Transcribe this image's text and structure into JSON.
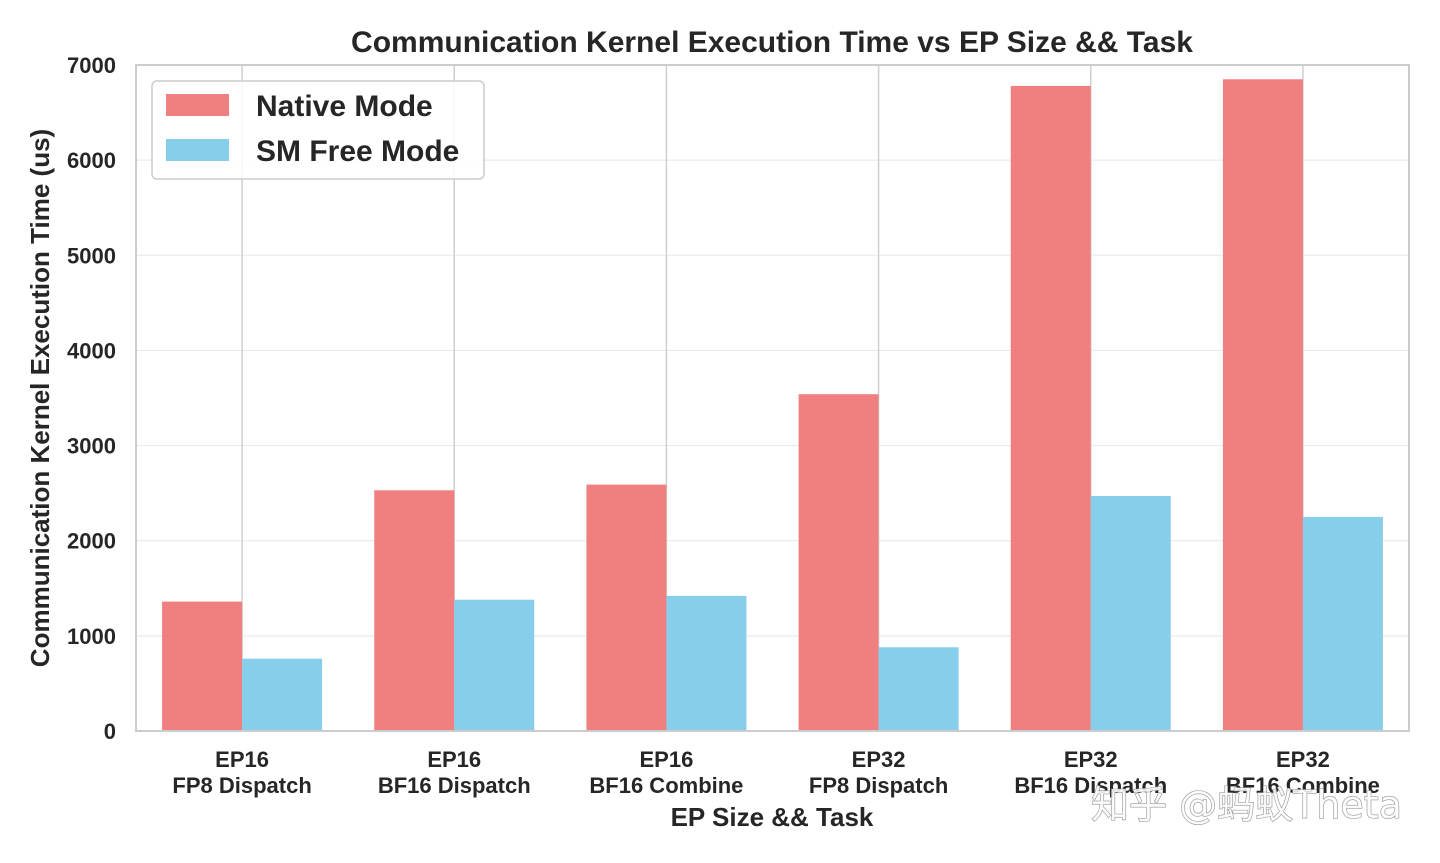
{
  "chart_data": {
    "type": "bar",
    "title": "Communication Kernel Execution Time vs EP Size && Task",
    "xlabel": "EP Size && Task",
    "ylabel": "Communication Kernel Execution Time (us)",
    "categories": [
      [
        "EP16",
        "FP8 Dispatch"
      ],
      [
        "EP16",
        "BF16 Dispatch"
      ],
      [
        "EP16",
        "BF16 Combine"
      ],
      [
        "EP32",
        "FP8 Dispatch"
      ],
      [
        "EP32",
        "BF16 Dispatch"
      ],
      [
        "EP32",
        "BF16 Combine"
      ]
    ],
    "series": [
      {
        "name": "Native Mode",
        "color": "#f08080",
        "values": [
          1360,
          2530,
          2590,
          3540,
          6780,
          6850
        ]
      },
      {
        "name": "SM Free Mode",
        "color": "#87ceeb",
        "values": [
          760,
          1380,
          1420,
          880,
          2470,
          2250
        ]
      }
    ],
    "ylim": [
      0,
      7000
    ],
    "yticks": [
      0,
      1000,
      2000,
      3000,
      4000,
      5000,
      6000,
      7000
    ],
    "grid": true,
    "legend_position": "top-left"
  },
  "watermark": "知乎 @蚂蚁Theta"
}
